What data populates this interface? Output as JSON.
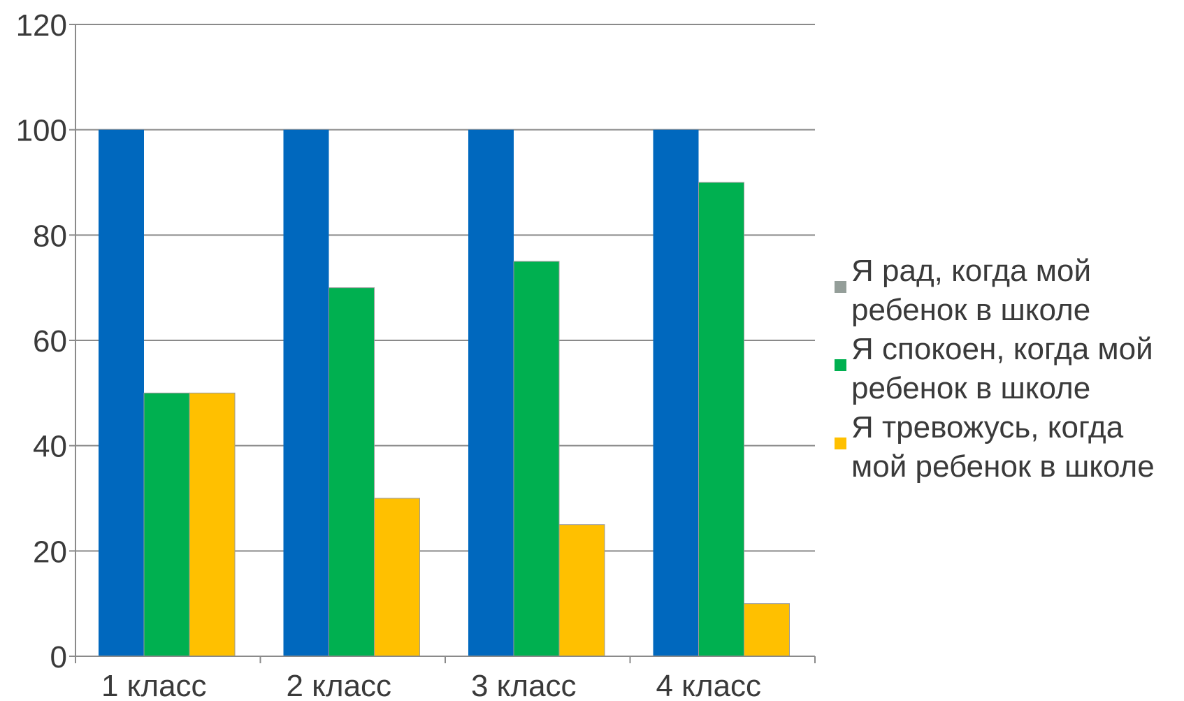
{
  "chart_data": {
    "type": "bar",
    "title": "",
    "xlabel": "",
    "ylabel": "",
    "ylim": [
      0,
      120
    ],
    "yticks": [
      0,
      20,
      40,
      60,
      80,
      100,
      120
    ],
    "grid": true,
    "legend_position": "right",
    "categories": [
      "1 класс",
      "2 класс",
      "3 класс",
      "4 класс"
    ],
    "series": [
      {
        "name": "Я рад, когда мой ребенок в школе",
        "color": "#0068be",
        "legend_color": "#949e99",
        "values": [
          100,
          100,
          100,
          100
        ]
      },
      {
        "name": "Я спокоен, когда мой ребенок в школе",
        "color": "#00b050",
        "legend_color": "#00b050",
        "values": [
          50,
          70,
          75,
          90
        ]
      },
      {
        "name": "Я тревожусь, когда мой ребенок в школе",
        "color": "#ffc000",
        "legend_color": "#ffc000",
        "values": [
          50,
          30,
          25,
          10
        ]
      }
    ]
  }
}
